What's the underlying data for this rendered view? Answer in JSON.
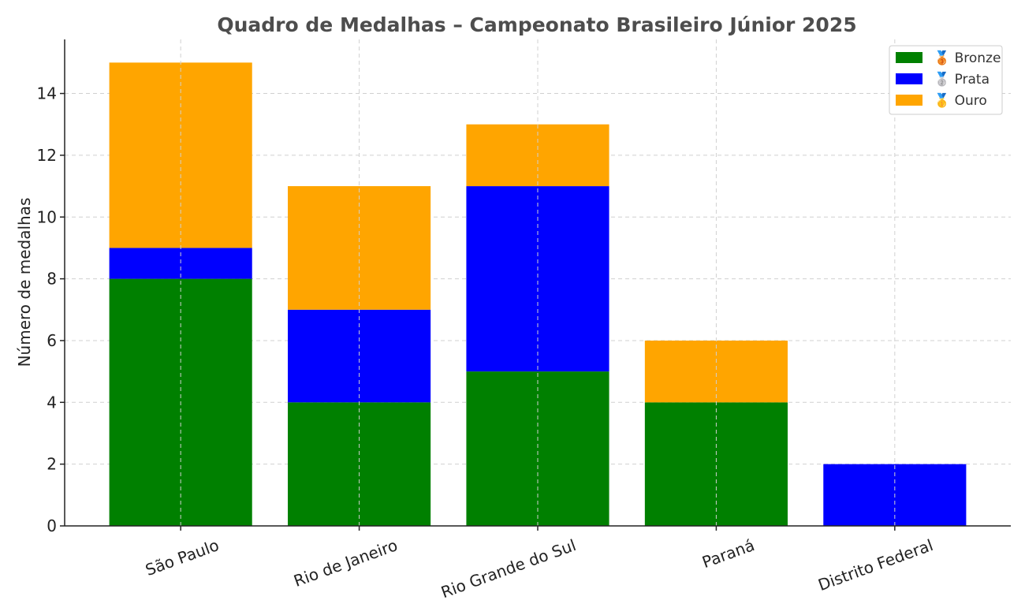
{
  "chart_data": {
    "type": "bar",
    "stacked": true,
    "title": "Quadro de Medalhas – Campeonato Brasileiro Júnior 2025",
    "xlabel": "",
    "ylabel": "Número de medalhas",
    "categories": [
      "São Paulo",
      "Rio de Janeiro",
      "Rio Grande do Sul",
      "Paraná",
      "Distrito Federal"
    ],
    "series": [
      {
        "name": "🥉 Bronze",
        "color": "#008000",
        "values": [
          8,
          4,
          5,
          4,
          0
        ]
      },
      {
        "name": "🥈 Prata",
        "color": "#0000ff",
        "values": [
          1,
          3,
          6,
          0,
          2
        ]
      },
      {
        "name": "🥇 Ouro",
        "color": "#ffa500",
        "values": [
          6,
          4,
          2,
          2,
          0
        ]
      }
    ],
    "ylim": [
      0,
      15.75
    ],
    "yticks": [
      0,
      2,
      4,
      6,
      8,
      10,
      12,
      14
    ],
    "grid": true,
    "legend_position": "top-right",
    "x_tick_rotation": -20
  }
}
